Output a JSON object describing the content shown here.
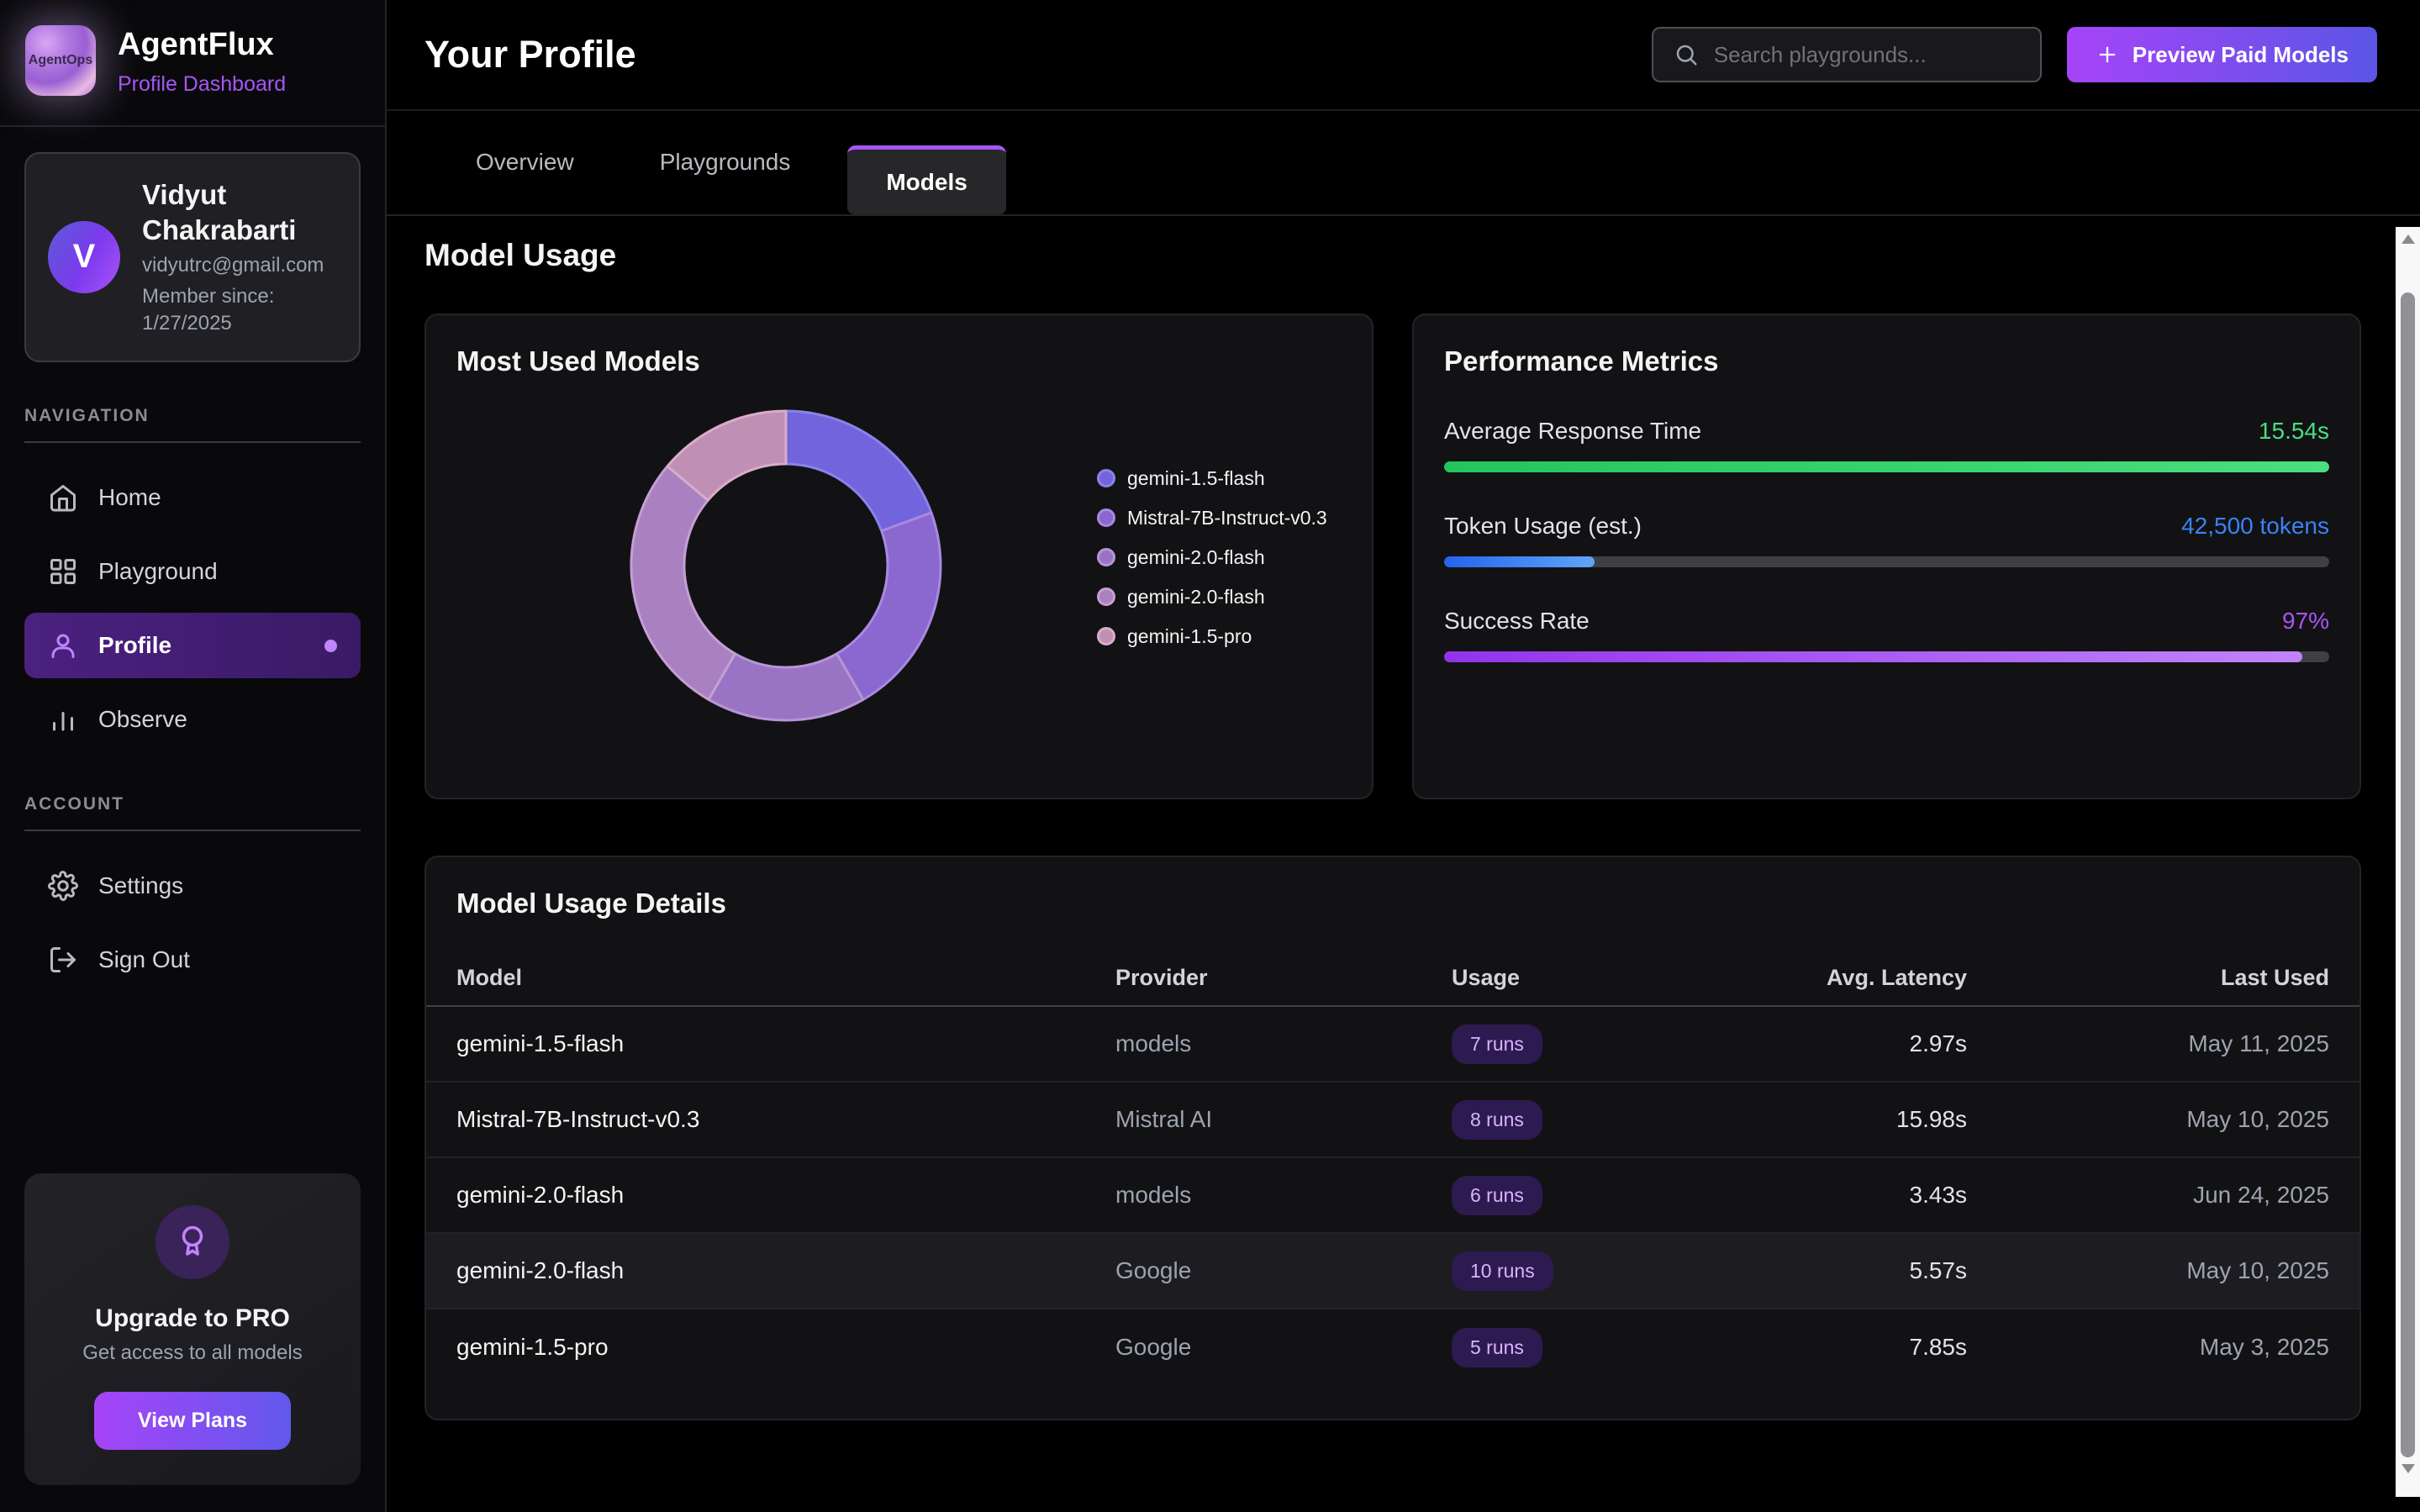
{
  "app": {
    "name": "AgentFlux",
    "subtitle": "Profile Dashboard",
    "logo_text": "AgentOps"
  },
  "sidebar": {
    "profile_card": {
      "initial": "V",
      "name": "Vidyut Chakrabarti",
      "email": "vidyutrc@gmail.com",
      "member_since": "Member since: 1/27/2025"
    },
    "nav_label": "NAVIGATION",
    "nav_items": [
      {
        "label": "Home",
        "icon": "home",
        "active": false
      },
      {
        "label": "Playground",
        "icon": "grid",
        "active": false
      },
      {
        "label": "Profile",
        "icon": "user",
        "active": true,
        "dot": true
      },
      {
        "label": "Observe",
        "icon": "chart",
        "active": false
      }
    ],
    "account_label": "ACCOUNT",
    "account_items": [
      {
        "label": "Settings",
        "icon": "gear"
      },
      {
        "label": "Sign Out",
        "icon": "sign-out"
      }
    ],
    "upgrade": {
      "title": "Upgrade to PRO",
      "subtitle": "Get access to all models",
      "button": "View Plans"
    }
  },
  "header": {
    "title": "Your Profile",
    "search_placeholder": "Search playgrounds...",
    "preview_button": "Preview Paid Models"
  },
  "tabs": [
    {
      "label": "Overview",
      "active": false
    },
    {
      "label": "Playgrounds",
      "active": false
    },
    {
      "label": "Models",
      "active": true
    }
  ],
  "section_title": "Model Usage",
  "chart_data": {
    "type": "pie",
    "title": "Most Used Models",
    "donut": true,
    "labels": [
      "gemini-1.5-flash",
      "Mistral-7B-Instruct-v0.3",
      "gemini-2.0-flash",
      "gemini-2.0-flash",
      "gemini-1.5-pro"
    ],
    "values": [
      7,
      8,
      6,
      10,
      5
    ],
    "unit": "runs",
    "colors": [
      "#7164dc",
      "#8a68cf",
      "#9974c4",
      "#aa81c0",
      "#c090b4"
    ],
    "border_colors": [
      "#8b82ea",
      "#a78ae0",
      "#b795d6",
      "#c49fd4",
      "#d9accb"
    ],
    "legend_position": "right",
    "start_angle_deg": 0,
    "clockwise": true
  },
  "metrics": {
    "title": "Performance Metrics",
    "items": [
      {
        "label": "Average Response Time",
        "value": "15.54s",
        "percent": 100,
        "value_color": "#4ade80",
        "bar_from": "#22c55e",
        "bar_to": "#4ade80"
      },
      {
        "label": "Token Usage (est.)",
        "value": "42,500 tokens",
        "percent": 17,
        "value_color": "#3b82f6",
        "bar_from": "#2563eb",
        "bar_to": "#60a5fa"
      },
      {
        "label": "Success Rate",
        "value": "97%",
        "percent": 97,
        "value_color": "#a855f7",
        "bar_from": "#9333ea",
        "bar_to": "#c084fc"
      }
    ]
  },
  "table": {
    "title": "Model Usage Details",
    "columns": [
      "Model",
      "Provider",
      "Usage",
      "Avg. Latency",
      "Last Used"
    ],
    "rows": [
      {
        "model": "gemini-1.5-flash",
        "provider": "models",
        "usage": "7 runs",
        "latency": "2.97s",
        "last_used": "May 11, 2025",
        "highlight": false
      },
      {
        "model": "Mistral-7B-Instruct-v0.3",
        "provider": "Mistral AI",
        "usage": "8 runs",
        "latency": "15.98s",
        "last_used": "May 10, 2025",
        "highlight": false
      },
      {
        "model": "gemini-2.0-flash",
        "provider": "models",
        "usage": "6 runs",
        "latency": "3.43s",
        "last_used": "Jun 24, 2025",
        "highlight": false
      },
      {
        "model": "gemini-2.0-flash",
        "provider": "Google",
        "usage": "10 runs",
        "latency": "5.57s",
        "last_used": "May 10, 2025",
        "highlight": true
      },
      {
        "model": "gemini-1.5-pro",
        "provider": "Google",
        "usage": "5 runs",
        "latency": "7.85s",
        "last_used": "May 3, 2025",
        "highlight": false
      }
    ]
  }
}
